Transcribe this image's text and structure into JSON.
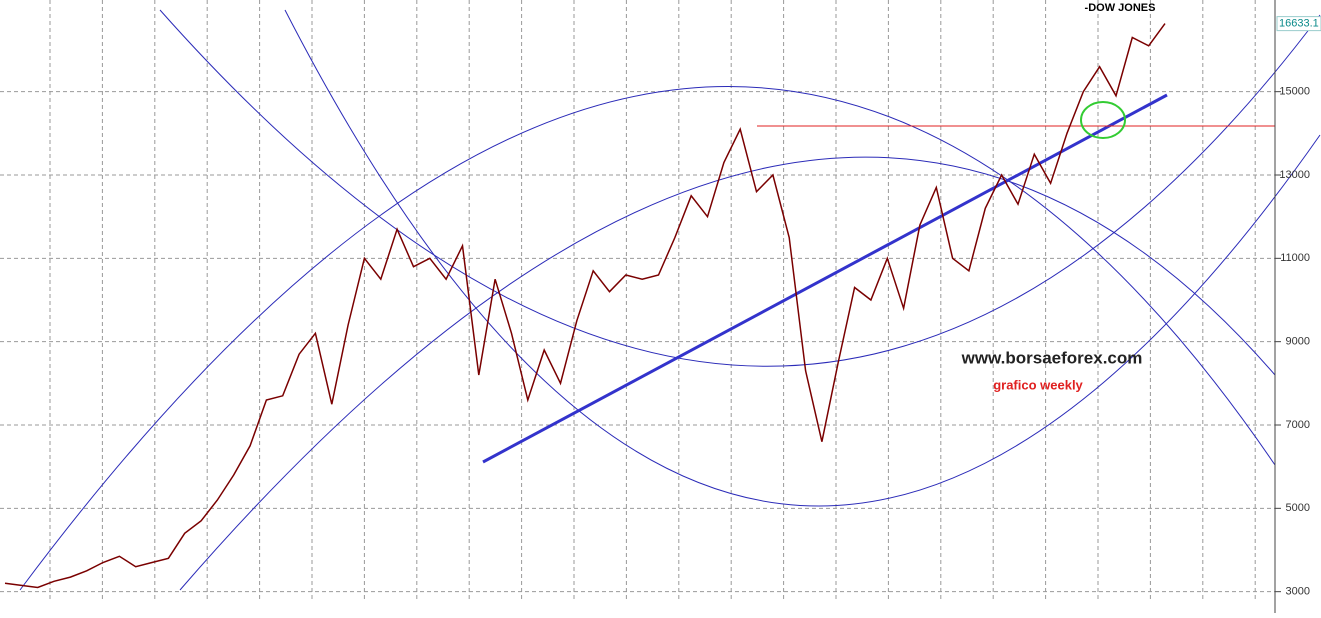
{
  "chart_data": {
    "type": "line",
    "title": "-DOW JONES",
    "annotations": [
      "www.borsaeforex.com",
      "grafico weekly"
    ],
    "values": [
      3200,
      3150,
      3100,
      3250,
      3350,
      3500,
      3700,
      3850,
      3600,
      3700,
      3800,
      4400,
      4700,
      5200,
      5800,
      6500,
      7600,
      7700,
      8700,
      9200,
      7500,
      9400,
      11000,
      10500,
      11700,
      10800,
      11000,
      10500,
      11300,
      8200,
      10500,
      9200,
      7600,
      8800,
      8000,
      9500,
      10700,
      10200,
      10600,
      10500,
      10600,
      11500,
      12500,
      12000,
      13300,
      14100,
      12600,
      13000,
      11500,
      8300,
      6600,
      8500,
      10300,
      10000,
      11000,
      9800,
      11800,
      12700,
      11000,
      10700,
      12200,
      13000,
      12300,
      13500,
      12800,
      14000,
      15000,
      15600,
      14900,
      16300,
      16100,
      16633.1
    ],
    "color": "#7a0000",
    "last_value": 16633.1,
    "ylim": [
      2800,
      17200
    ],
    "yticks": [
      3000,
      5000,
      7000,
      9000,
      11000,
      13000,
      15000
    ],
    "grid": true
  }
}
